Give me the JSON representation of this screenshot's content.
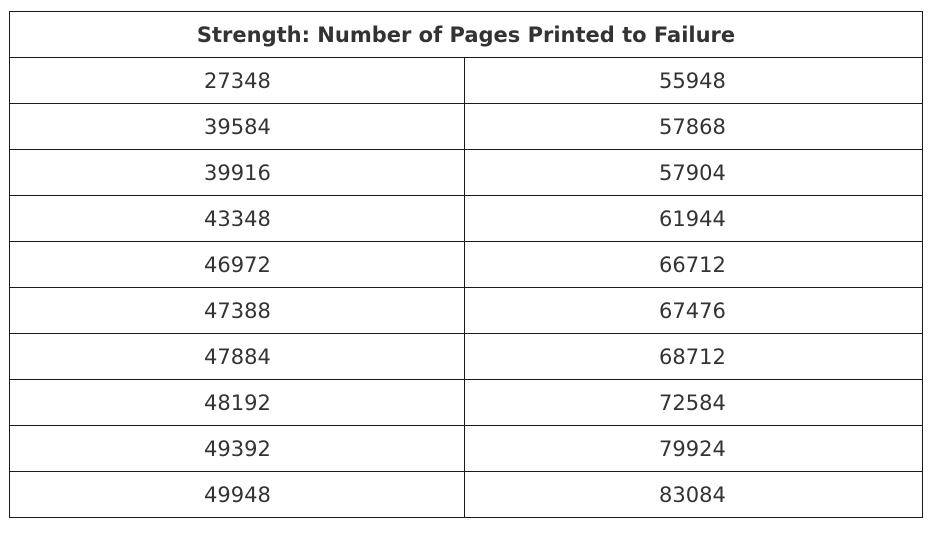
{
  "table": {
    "header": "Strength: Number of Pages Printed to Failure",
    "rows": [
      [
        "27348",
        "55948"
      ],
      [
        "39584",
        "57868"
      ],
      [
        "39916",
        "57904"
      ],
      [
        "43348",
        "61944"
      ],
      [
        "46972",
        "66712"
      ],
      [
        "47388",
        "67476"
      ],
      [
        "47884",
        "68712"
      ],
      [
        "48192",
        "72584"
      ],
      [
        "49392",
        "79924"
      ],
      [
        "49948",
        "83084"
      ]
    ]
  }
}
